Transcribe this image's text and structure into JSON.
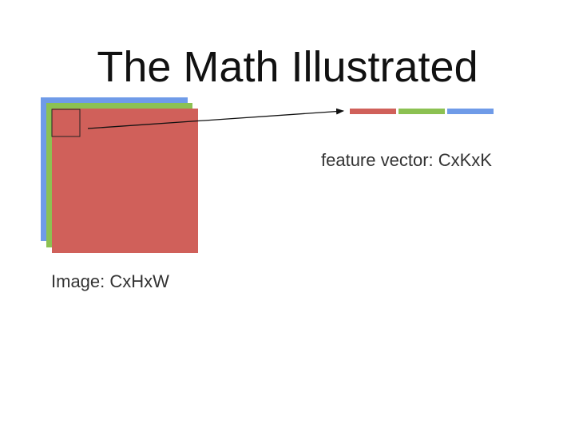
{
  "title": "The Math Illustrated",
  "image_label": "Image: CxHxW",
  "vector_label": "feature vector: CxKxK",
  "colors": {
    "channel_blue": "#6f9be8",
    "channel_green": "#8cc152",
    "channel_red": "#d0605a",
    "patch_border": "#222222",
    "arrow": "#111111"
  }
}
